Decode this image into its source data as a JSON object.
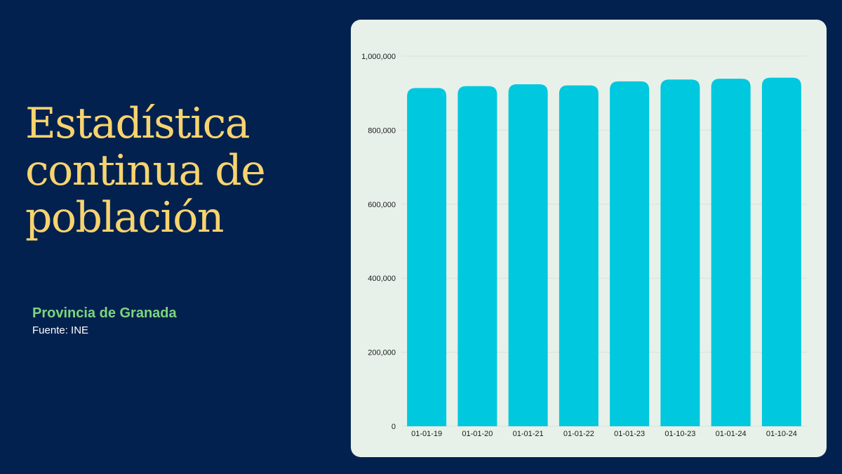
{
  "title_lines": [
    "Estadística",
    "continua de",
    "población"
  ],
  "subtitle": "Provincia de Granada",
  "source": "Fuente: INE",
  "colors": {
    "background": "#03214f",
    "title": "#f7d46e",
    "subtitle": "#7ed67b",
    "card": "#e8f1e9",
    "bar": "#00c8de"
  },
  "chart_data": {
    "type": "bar",
    "categories": [
      "01-01-19",
      "01-01-20",
      "01-01-21",
      "01-01-22",
      "01-01-23",
      "01-10-23",
      "01-01-24",
      "01-10-24"
    ],
    "values": [
      914000,
      919000,
      924000,
      921000,
      932000,
      937000,
      939000,
      942000
    ],
    "ylim": [
      0,
      1000000
    ],
    "yticks": [
      0,
      200000,
      400000,
      600000,
      800000,
      1000000
    ],
    "ytick_labels": [
      "0",
      "200,000",
      "400,000",
      "600,000",
      "800,000",
      "1,000,000"
    ],
    "grid": true,
    "legend": "none"
  }
}
